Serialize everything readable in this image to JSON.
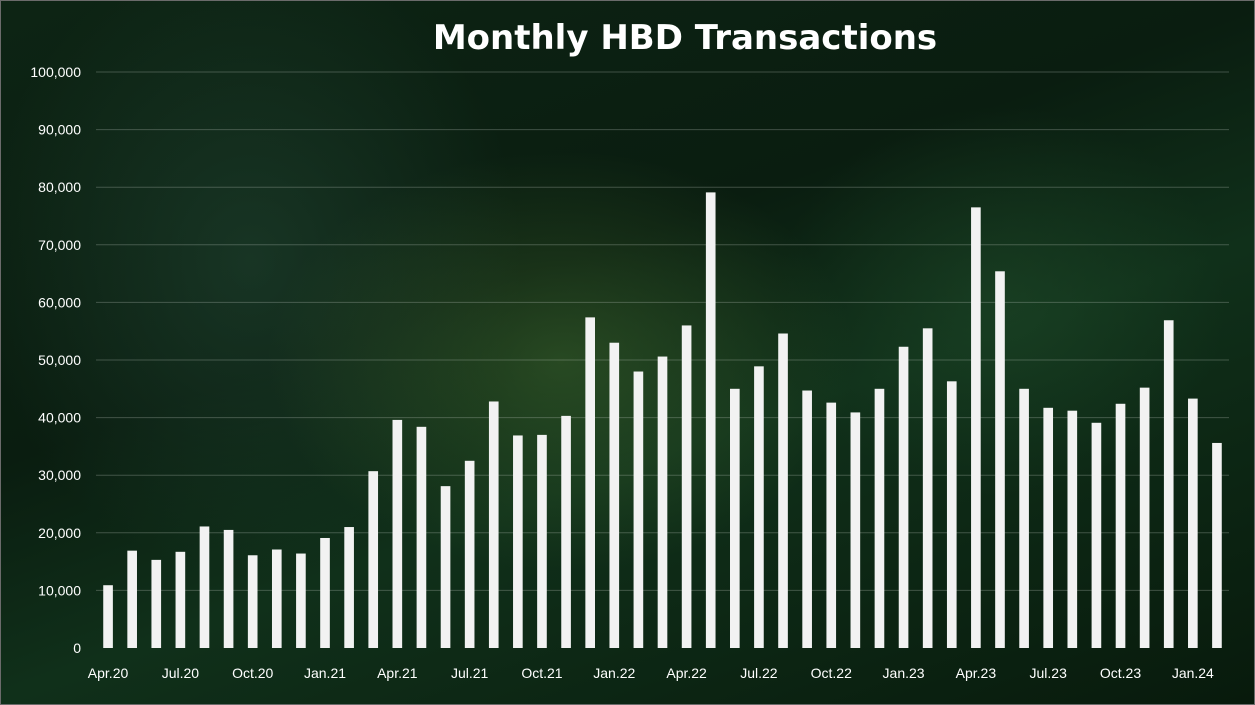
{
  "chart_data": {
    "type": "bar",
    "title": "Monthly HBD Transactions",
    "xlabel": "",
    "ylabel": "",
    "ylim": [
      0,
      100000
    ],
    "y_ticks": [
      "0",
      "10,000",
      "20,000",
      "30,000",
      "40,000",
      "50,000",
      "60,000",
      "70,000",
      "80,000",
      "90,000",
      "100,000"
    ],
    "y_tick_values": [
      0,
      10000,
      20000,
      30000,
      40000,
      50000,
      60000,
      70000,
      80000,
      90000,
      100000
    ],
    "grid": true,
    "legend": "none",
    "categories": [
      "Apr.20",
      "May.20",
      "Jun.20",
      "Jul.20",
      "Aug.20",
      "Sep.20",
      "Oct.20",
      "Nov.20",
      "Dec.20",
      "Jan.21",
      "Feb.21",
      "Mar.21",
      "Apr.21",
      "May.21",
      "Jun.21",
      "Jul.21",
      "Aug.21",
      "Sep.21",
      "Oct.21",
      "Nov.21",
      "Dec.21",
      "Jan.22",
      "Feb.22",
      "Mar.22",
      "Apr.22",
      "May.22",
      "Jun.22",
      "Jul.22",
      "Aug.22",
      "Sep.22",
      "Oct.22",
      "Nov.22",
      "Dec.22",
      "Jan.23",
      "Feb.23",
      "Mar.23",
      "Apr.23",
      "May.23",
      "Jun.23",
      "Jul.23",
      "Aug.23",
      "Sep.23",
      "Oct.23",
      "Nov.23",
      "Dec.23",
      "Jan.24",
      "Feb.24"
    ],
    "x_tick_labels": [
      "Apr.20",
      "Jul.20",
      "Oct.20",
      "Jan.21",
      "Apr.21",
      "Jul.21",
      "Oct.21",
      "Jan.22",
      "Apr.22",
      "Jul.22",
      "Oct.22",
      "Jan.23",
      "Apr.23",
      "Jul.23",
      "Oct.23",
      "Jan.24"
    ],
    "values": [
      10900,
      16900,
      15300,
      16700,
      21100,
      20500,
      16100,
      17100,
      16400,
      19100,
      21000,
      30700,
      39600,
      38400,
      28100,
      32500,
      42800,
      36900,
      37000,
      40300,
      57400,
      53000,
      48000,
      50600,
      56000,
      79100,
      45000,
      48900,
      54600,
      44700,
      42600,
      40900,
      45000,
      52300,
      55500,
      46300,
      76500,
      65400,
      45000,
      41700,
      41200,
      39100,
      42400,
      45200,
      56900,
      43300,
      35600
    ]
  }
}
